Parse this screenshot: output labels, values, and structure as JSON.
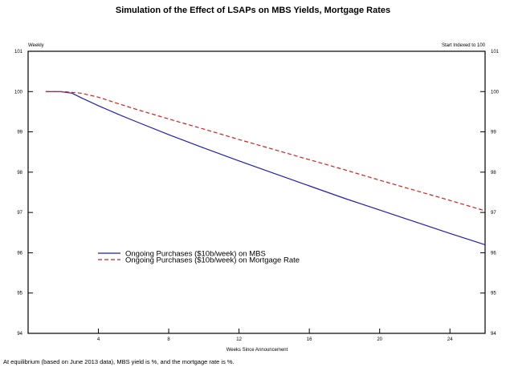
{
  "chart_data": {
    "type": "line",
    "title": "Simulation of the Effect of LSAPs on MBS Yields, Mortgage Rates",
    "left_axis_label": "Weekly",
    "right_axis_label": "Start Indexed to 100",
    "xlabel": "Weeks Since Announcement",
    "xlim": [
      0,
      26
    ],
    "ylim": [
      94,
      101
    ],
    "xticks": [
      4,
      8,
      12,
      16,
      20,
      24
    ],
    "yticks": [
      94,
      95,
      96,
      97,
      98,
      99,
      100,
      101
    ],
    "legend_position": "lower-left",
    "series": [
      {
        "name": "Ongoing Purchases ($10b/week) on MBS",
        "color": "#1f1fb4",
        "style": "solid",
        "x": [
          1,
          1.8,
          2.5,
          3,
          4,
          5,
          6,
          8,
          10,
          12,
          14,
          16,
          18,
          20,
          22,
          24,
          26
        ],
        "values": [
          100,
          100,
          99.96,
          99.85,
          99.65,
          99.46,
          99.28,
          98.93,
          98.6,
          98.28,
          97.97,
          97.66,
          97.35,
          97.06,
          96.77,
          96.48,
          96.2
        ]
      },
      {
        "name": "Ongoing Purchases ($10b/week) on Mortgage Rate",
        "color": "#d42020",
        "style": "dashed",
        "x": [
          1,
          2,
          3,
          4,
          5,
          6,
          8,
          10,
          12,
          14,
          16,
          18,
          20,
          22,
          24,
          26
        ],
        "values": [
          100,
          100,
          99.96,
          99.86,
          99.72,
          99.58,
          99.32,
          99.07,
          98.81,
          98.56,
          98.31,
          98.06,
          97.8,
          97.55,
          97.3,
          97.04
        ]
      }
    ]
  },
  "footnote": "At equilibrium (based on June 2013 data), MBS yield is %, and the mortgage rate is %."
}
